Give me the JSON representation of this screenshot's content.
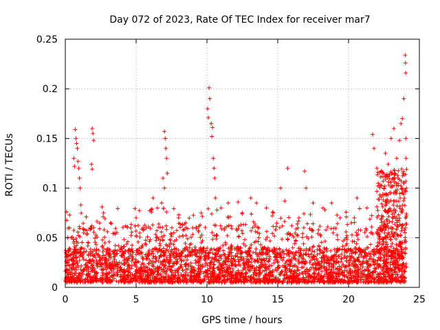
{
  "chart_data": {
    "type": "scatter",
    "title": "Day 072 of 2023, Rate Of TEC Index for receiver mar7",
    "xlabel": "GPS time / hours",
    "ylabel": "ROTI / TECUs",
    "xlim": [
      0,
      25
    ],
    "ylim": [
      0,
      0.25
    ],
    "xticks": [
      0,
      5,
      10,
      15,
      20,
      25
    ],
    "xtick_labels": [
      "0",
      "5",
      "10",
      "15",
      "20",
      "25"
    ],
    "yticks": [
      0,
      0.05,
      0.1,
      0.15,
      0.2,
      0.25
    ],
    "ytick_labels": [
      "0",
      "0.05",
      "0.1",
      "0.15",
      "0.2",
      "0.25"
    ],
    "grid": true,
    "marker": "+",
    "marker_color": "#ff0000",
    "series": [
      {
        "name": "ROTI",
        "baseline_range": [
          0.005,
          0.04
        ],
        "data_time_span": [
          0,
          24
        ],
        "outlier_points": [
          [
            0.1,
            0.076
          ],
          [
            0.3,
            0.06
          ],
          [
            0.4,
            0.05
          ],
          [
            0.6,
            0.13
          ],
          [
            0.65,
            0.122
          ],
          [
            0.7,
            0.159
          ],
          [
            0.75,
            0.15
          ],
          [
            0.8,
            0.145
          ],
          [
            0.85,
            0.14
          ],
          [
            0.9,
            0.127
          ],
          [
            0.95,
            0.12
          ],
          [
            1.0,
            0.11
          ],
          [
            1.05,
            0.1
          ],
          [
            1.1,
            0.083
          ],
          [
            1.9,
            0.16
          ],
          [
            1.95,
            0.155
          ],
          [
            2.0,
            0.148
          ],
          [
            1.85,
            0.124
          ],
          [
            1.9,
            0.119
          ],
          [
            2.0,
            0.06
          ],
          [
            2.6,
            0.081
          ],
          [
            2.7,
            0.075
          ],
          [
            3.2,
            0.065
          ],
          [
            3.5,
            0.055
          ],
          [
            5.0,
            0.07
          ],
          [
            5.5,
            0.06
          ],
          [
            6.2,
            0.09
          ],
          [
            6.5,
            0.08
          ],
          [
            6.9,
            0.11
          ],
          [
            7.0,
            0.157
          ],
          [
            7.05,
            0.15
          ],
          [
            7.1,
            0.14
          ],
          [
            7.15,
            0.13
          ],
          [
            7.2,
            0.115
          ],
          [
            7.0,
            0.1
          ],
          [
            6.8,
            0.085
          ],
          [
            8.0,
            0.07
          ],
          [
            8.5,
            0.065
          ],
          [
            9.0,
            0.06
          ],
          [
            9.6,
            0.075
          ],
          [
            10.05,
            0.18
          ],
          [
            10.1,
            0.171
          ],
          [
            10.15,
            0.201
          ],
          [
            10.2,
            0.19
          ],
          [
            10.3,
            0.165
          ],
          [
            10.4,
            0.161
          ],
          [
            10.35,
            0.152
          ],
          [
            10.45,
            0.13
          ],
          [
            10.5,
            0.12
          ],
          [
            10.55,
            0.11
          ],
          [
            10.6,
            0.09
          ],
          [
            11.0,
            0.08
          ],
          [
            11.5,
            0.085
          ],
          [
            12.2,
            0.086
          ],
          [
            12.5,
            0.075
          ],
          [
            13.1,
            0.09
          ],
          [
            13.5,
            0.085
          ],
          [
            14.2,
            0.08
          ],
          [
            14.7,
            0.075
          ],
          [
            15.2,
            0.1
          ],
          [
            15.5,
            0.087
          ],
          [
            15.7,
            0.12
          ],
          [
            16.5,
            0.07
          ],
          [
            16.9,
            0.117
          ],
          [
            17.0,
            0.1
          ],
          [
            17.5,
            0.085
          ],
          [
            18.2,
            0.08
          ],
          [
            18.8,
            0.085
          ],
          [
            19.4,
            0.07
          ],
          [
            20.2,
            0.065
          ],
          [
            20.6,
            0.09
          ],
          [
            21.3,
            0.08
          ],
          [
            21.7,
            0.154
          ],
          [
            21.8,
            0.14
          ],
          [
            22.0,
            0.12
          ],
          [
            22.1,
            0.105
          ],
          [
            22.5,
            0.1
          ],
          [
            22.6,
            0.135
          ],
          [
            22.8,
            0.124
          ],
          [
            23.0,
            0.15
          ],
          [
            23.2,
            0.16
          ],
          [
            23.4,
            0.13
          ],
          [
            23.5,
            0.11
          ],
          [
            23.6,
            0.148
          ],
          [
            23.7,
            0.165
          ],
          [
            23.8,
            0.17
          ],
          [
            23.9,
            0.19
          ],
          [
            24.0,
            0.234
          ],
          [
            24.02,
            0.226
          ],
          [
            24.04,
            0.216
          ],
          [
            24.05,
            0.15
          ],
          [
            24.06,
            0.13
          ],
          [
            24.08,
            0.1
          ]
        ]
      }
    ]
  }
}
